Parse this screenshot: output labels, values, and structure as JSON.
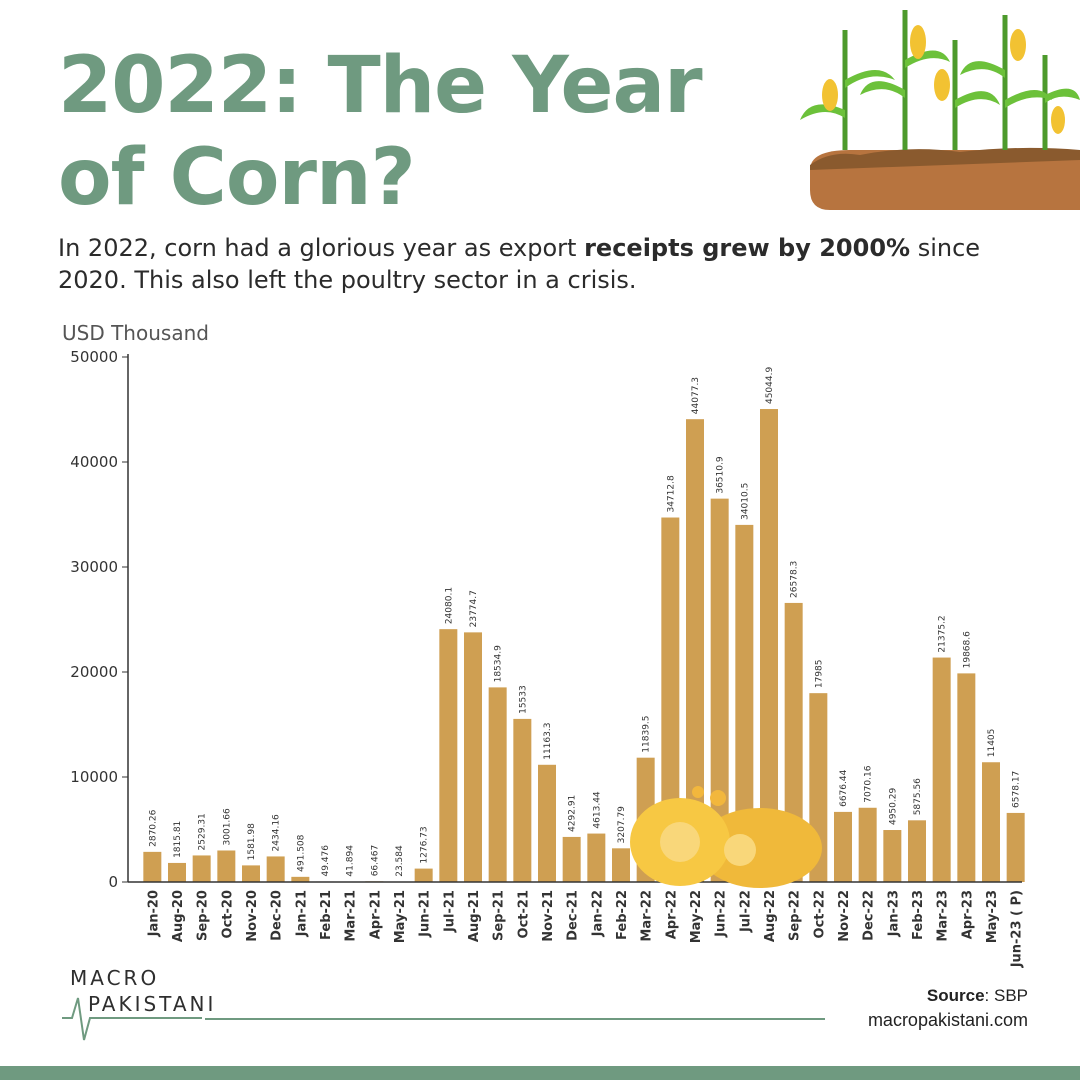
{
  "header": {
    "title_line1": "2022: The Year",
    "title_line2": "of Corn?",
    "subtitle_part1": "In 2022, corn had a glorious year as export ",
    "subtitle_bold": "receipts grew by 2000%",
    "subtitle_part2": " since 2020. This also left the poultry sector in a crisis."
  },
  "colors": {
    "brand": "#6f9a80",
    "bar": "#cf9f52",
    "text": "#2b2b2b"
  },
  "chart_data": {
    "type": "bar",
    "title": "",
    "xlabel": "",
    "ylabel": "USD Thousand",
    "ylim": [
      0,
      50000
    ],
    "yticks": [
      0,
      10000,
      20000,
      30000,
      40000,
      50000
    ],
    "categories": [
      "Jan-20",
      "Aug-20",
      "Sep-20",
      "Oct-20",
      "Nov-20",
      "Dec-20",
      "Jan-21",
      "Feb-21",
      "Mar-21",
      "Apr-21",
      "May-21",
      "Jun-21",
      "Jul-21",
      "Aug-21",
      "Sep-21",
      "Oct-21",
      "Nov-21",
      "Dec-21",
      "Jan-22",
      "Feb-22",
      "Mar-22",
      "Apr-22",
      "May-22",
      "Jun-22",
      "Jul-22",
      "Aug-22",
      "Sep-22",
      "Oct-22",
      "Nov-22",
      "Dec-22",
      "Jan-23",
      "Feb-23",
      "Mar-23",
      "Apr-23",
      "May-23",
      "Jun-23 ( P)"
    ],
    "values": [
      2870.26,
      1815.81,
      2529.31,
      3001.66,
      1581.98,
      2434.16,
      491.508,
      49.476,
      41.894,
      66.467,
      23.584,
      1276.73,
      24080.1,
      23774.7,
      18534.9,
      15533,
      11163.3,
      4292.91,
      4613.44,
      3207.79,
      11839.5,
      34712.8,
      44077.3,
      36510.9,
      34010.5,
      45044.9,
      26578.3,
      17985,
      6676.44,
      7070.16,
      4950.29,
      5875.56,
      21375.2,
      19868.6,
      11405,
      6578.17
    ],
    "labels": [
      "2870.26",
      "1815.81",
      "2529.31",
      "3001.66",
      "1581.98",
      "2434.16",
      "491.508",
      "49.476",
      "41.894",
      "66.467",
      "23.584",
      "1276.73",
      "24080.1",
      "23774.7",
      "18534.9",
      "15533",
      "11163.3",
      "4292.91",
      "4613.44",
      "3207.79",
      "11839.5",
      "34712.8",
      "44077.3",
      "36510.9",
      "34010.5",
      "45044.9",
      "26578.3",
      "17985",
      "6676.44",
      "7070.16",
      "4950.29",
      "5875.56",
      "21375.2",
      "19868.6",
      "11405",
      "6578.17"
    ]
  },
  "footer": {
    "logo_line1": "MACRO",
    "logo_line2": "PAKISTANI",
    "source_label": "Source",
    "source_value": ": SBP",
    "website": "macropakistani.com"
  }
}
